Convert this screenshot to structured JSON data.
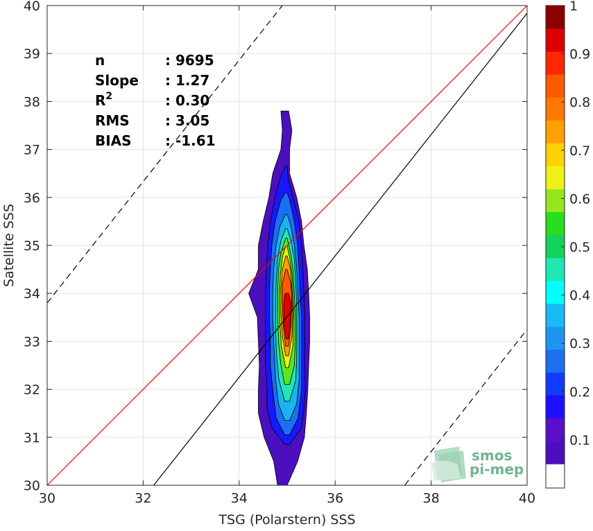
{
  "chart_data": {
    "type": "density-contour-scatter",
    "xlabel": "TSG (Polarstern) SSS",
    "ylabel": "Satellite SSS",
    "xlim": [
      30,
      40
    ],
    "ylim": [
      30,
      40
    ],
    "xticks": [
      30,
      32,
      34,
      36,
      38,
      40
    ],
    "yticks": [
      30,
      31,
      32,
      33,
      34,
      35,
      36,
      37,
      38,
      39,
      40
    ],
    "grid": true,
    "stats": [
      {
        "name": "n",
        "value": ": 9695"
      },
      {
        "name": "Slope",
        "value": ": 1.27"
      },
      {
        "name": "R",
        "sup": "2",
        "value": ": 0.30"
      },
      {
        "name": "RMS",
        "value": ": 3.05"
      },
      {
        "name": "BIAS",
        "value": ": -1.61"
      }
    ],
    "lines": {
      "one_to_one": {
        "color": "#ff0000",
        "from": [
          30,
          30
        ],
        "to": [
          40,
          40
        ]
      },
      "fit": {
        "color": "#000000",
        "style": "solid",
        "from": [
          32.22,
          30
        ],
        "to": [
          40,
          39.84
        ]
      },
      "upper_bound": {
        "color": "#000000",
        "style": "dashed",
        "from": [
          30,
          33.8
        ],
        "to": [
          34.9,
          40
        ]
      },
      "lower_bound": {
        "color": "#000000",
        "style": "dashed",
        "from": [
          37.45,
          30
        ],
        "to": [
          40,
          33.25
        ]
      }
    },
    "density": {
      "center_x": 35.0,
      "levels": [
        {
          "level": 0.05,
          "color": "#4b0fbe",
          "y": [
            30.0,
            30.5,
            31.0,
            31.5,
            32.0,
            32.5,
            33.0,
            33.5,
            34.0,
            34.5,
            35.0,
            35.5,
            36.0,
            36.5,
            37.0,
            37.4,
            37.8
          ],
          "left": [
            34.8,
            34.72,
            34.52,
            34.4,
            34.4,
            34.42,
            34.4,
            34.38,
            34.2,
            34.4,
            34.4,
            34.5,
            34.62,
            34.7,
            34.87,
            34.9,
            34.87
          ],
          "right": [
            35.0,
            35.22,
            35.36,
            35.4,
            35.43,
            35.45,
            35.47,
            35.47,
            35.45,
            35.42,
            35.35,
            35.3,
            35.2,
            35.05,
            35.05,
            35.1,
            35.03
          ]
        },
        {
          "level": 0.15,
          "color": "#1818ff",
          "y": [
            30.85,
            31.2,
            31.6,
            32.0,
            32.5,
            33.0,
            33.5,
            34.0,
            34.5,
            35.0,
            35.5,
            36.0,
            36.4,
            36.65
          ],
          "left": [
            34.95,
            34.68,
            34.58,
            34.58,
            34.55,
            34.55,
            34.55,
            34.55,
            34.57,
            34.6,
            34.65,
            34.75,
            34.85,
            34.97
          ],
          "right": [
            35.05,
            35.3,
            35.35,
            35.38,
            35.37,
            35.37,
            35.37,
            35.35,
            35.33,
            35.3,
            35.25,
            35.12,
            35.02,
            35.0
          ]
        },
        {
          "level": 0.25,
          "color": "#1b6ff5",
          "y": [
            31.05,
            31.4,
            32.0,
            32.5,
            33.0,
            33.5,
            34.0,
            34.5,
            35.0,
            35.5,
            35.95,
            36.1
          ],
          "left": [
            34.95,
            34.77,
            34.7,
            34.65,
            34.65,
            34.63,
            34.63,
            34.65,
            34.68,
            34.75,
            34.87,
            34.97
          ],
          "right": [
            35.05,
            35.23,
            35.3,
            35.3,
            35.3,
            35.3,
            35.27,
            35.25,
            35.22,
            35.15,
            35.05,
            35.0
          ]
        },
        {
          "level": 0.35,
          "color": "#19b4f0",
          "y": [
            31.35,
            31.7,
            32.2,
            33.0,
            33.5,
            34.0,
            34.5,
            35.0,
            35.4,
            35.65
          ],
          "left": [
            34.95,
            34.82,
            34.76,
            34.72,
            34.7,
            34.7,
            34.72,
            34.77,
            34.85,
            34.97
          ],
          "right": [
            35.05,
            35.2,
            35.25,
            35.25,
            35.25,
            35.22,
            35.2,
            35.15,
            35.08,
            35.0
          ]
        },
        {
          "level": 0.45,
          "color": "#21e6b4",
          "y": [
            31.75,
            32.2,
            32.7,
            33.2,
            33.7,
            34.2,
            34.7,
            35.1,
            35.35
          ],
          "left": [
            34.95,
            34.83,
            34.78,
            34.76,
            34.76,
            34.77,
            34.8,
            34.87,
            34.97
          ],
          "right": [
            35.05,
            35.18,
            35.2,
            35.2,
            35.2,
            35.18,
            35.15,
            35.08,
            35.0
          ]
        },
        {
          "level": 0.55,
          "color": "#5ae61e",
          "y": [
            32.1,
            32.5,
            33.0,
            33.5,
            34.0,
            34.5,
            34.85,
            35.15
          ],
          "left": [
            34.95,
            34.87,
            34.82,
            34.8,
            34.8,
            34.82,
            34.87,
            34.97
          ],
          "right": [
            35.05,
            35.15,
            35.17,
            35.17,
            35.15,
            35.12,
            35.07,
            35.0
          ]
        },
        {
          "level": 0.65,
          "color": "#f0f01e",
          "y": [
            32.45,
            32.9,
            33.4,
            33.9,
            34.4,
            34.75,
            34.98
          ],
          "left": [
            34.97,
            34.88,
            34.85,
            34.84,
            34.86,
            34.9,
            34.97
          ],
          "right": [
            35.03,
            35.12,
            35.13,
            35.13,
            35.1,
            35.05,
            35.0
          ]
        },
        {
          "level": 0.75,
          "color": "#ffa000",
          "y": [
            32.7,
            33.1,
            33.6,
            34.1,
            34.5,
            34.78
          ],
          "left": [
            34.97,
            34.9,
            34.87,
            34.87,
            34.9,
            34.97
          ],
          "right": [
            35.03,
            35.1,
            35.12,
            35.1,
            35.07,
            35.0
          ]
        },
        {
          "level": 0.85,
          "color": "#ff5a00",
          "y": [
            32.9,
            33.3,
            33.8,
            34.2,
            34.5
          ],
          "left": [
            34.97,
            34.92,
            34.9,
            34.9,
            34.97
          ],
          "right": [
            35.03,
            35.08,
            35.1,
            35.08,
            35.0
          ]
        },
        {
          "level": 0.95,
          "color": "#e60000",
          "y": [
            33.05,
            33.4,
            33.8,
            34.0
          ],
          "left": [
            34.98,
            34.93,
            34.93,
            34.96
          ],
          "right": [
            35.03,
            35.07,
            35.08,
            35.03
          ]
        }
      ]
    },
    "colorbar": {
      "ticks": [
        "0.1",
        "0.2",
        "0.3",
        "0.4",
        "0.5",
        "0.6",
        "0.7",
        "0.8",
        "0.9",
        "1"
      ],
      "tick_values": [
        0.1,
        0.2,
        0.3,
        0.4,
        0.5,
        0.6,
        0.7,
        0.8,
        0.9,
        1.0
      ],
      "lim": [
        0,
        1
      ],
      "white_below": 0.05,
      "bands": [
        "#4b0fbe",
        "#5a0fc8",
        "#1e0fff",
        "#0f3cff",
        "#1e6ef0",
        "#1e96f0",
        "#19b9f5",
        "#00ffff",
        "#1ee6b4",
        "#14d25a",
        "#28dc1e",
        "#96e61e",
        "#f0f019",
        "#ffd200",
        "#ffa000",
        "#ff7800",
        "#ff5a00",
        "#ff2800",
        "#dc0000",
        "#8c0000"
      ]
    }
  },
  "logo": {
    "line1": "smos",
    "line2": "pi-mep",
    "color": "#6fb58f"
  }
}
